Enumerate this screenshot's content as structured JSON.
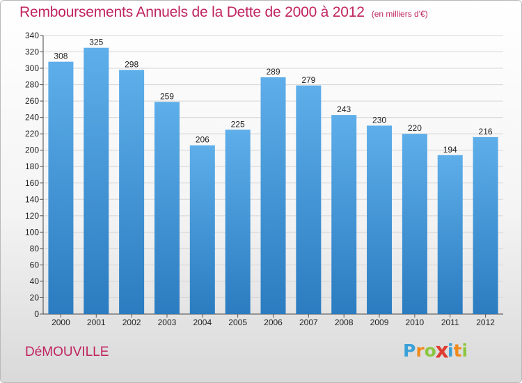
{
  "header": {
    "title": "Remboursements Annuels de la Dette de 2000 à 2012",
    "subtitle": "(en milliers d'€)"
  },
  "footer": {
    "commune": "DéMOUVILLE",
    "logo_text": "Proxiti",
    "logo_letters": [
      {
        "char": "P",
        "color": "#3aa0d8"
      },
      {
        "char": "r",
        "color": "#f08a1c"
      },
      {
        "char": "o",
        "color": "#8cc63f"
      },
      {
        "char": "x",
        "color": "#e03c31"
      },
      {
        "char": "i",
        "color": "#3aa0d8"
      },
      {
        "char": "t",
        "color": "#f08a1c"
      },
      {
        "char": "i",
        "color": "#8cc63f"
      }
    ]
  },
  "colors": {
    "bar_top": "#5eaeea",
    "bar_bottom": "#2b7cc0",
    "title": "#c0245f",
    "grid": "#d6d6d6"
  },
  "chart_data": {
    "type": "bar",
    "title": "Remboursements Annuels de la Dette de 2000 à 2012",
    "subtitle": "(en milliers d'€)",
    "xlabel": "",
    "ylabel": "",
    "categories": [
      "2000",
      "2001",
      "2002",
      "2003",
      "2004",
      "2005",
      "2006",
      "2007",
      "2008",
      "2009",
      "2010",
      "2011",
      "2012"
    ],
    "values": [
      308,
      325,
      298,
      259,
      206,
      225,
      289,
      279,
      243,
      230,
      220,
      194,
      216
    ],
    "ylim": [
      0,
      340
    ],
    "yticks": [
      0,
      20,
      40,
      60,
      80,
      100,
      120,
      140,
      160,
      180,
      200,
      220,
      240,
      260,
      280,
      300,
      320,
      340
    ],
    "grid": true,
    "legend": "none"
  }
}
